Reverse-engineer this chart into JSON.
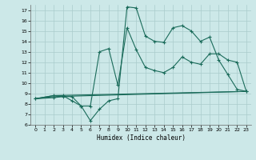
{
  "xlabel": "Humidex (Indice chaleur)",
  "background_color": "#cce8e8",
  "grid_color": "#aacccc",
  "line_color": "#1a6b5a",
  "xlim": [
    -0.5,
    23.5
  ],
  "ylim": [
    6,
    17.5
  ],
  "yticks": [
    6,
    7,
    8,
    9,
    10,
    11,
    12,
    13,
    14,
    15,
    16,
    17
  ],
  "xticks": [
    0,
    1,
    2,
    3,
    4,
    5,
    6,
    7,
    8,
    9,
    10,
    11,
    12,
    13,
    14,
    15,
    16,
    17,
    18,
    19,
    20,
    21,
    22,
    23
  ],
  "line1_x": [
    0,
    2,
    3,
    4,
    5,
    6,
    7,
    8,
    9,
    10,
    11,
    12,
    13,
    14,
    15,
    16,
    17,
    18,
    19,
    20,
    21,
    22,
    23
  ],
  "line1_y": [
    8.5,
    8.6,
    8.7,
    8.7,
    7.8,
    6.4,
    7.5,
    8.3,
    8.5,
    17.3,
    17.2,
    14.5,
    14.0,
    13.9,
    15.3,
    15.5,
    15.0,
    14.0,
    14.4,
    12.2,
    10.8,
    9.4,
    9.2
  ],
  "line2_x": [
    0,
    2,
    3,
    4,
    5,
    6,
    7,
    8,
    9,
    10,
    11,
    12,
    13,
    14,
    15,
    16,
    17,
    18,
    19,
    20,
    21,
    22,
    23
  ],
  "line2_y": [
    8.5,
    8.8,
    8.8,
    8.3,
    7.8,
    7.8,
    13.0,
    13.3,
    9.8,
    15.3,
    13.2,
    11.5,
    11.2,
    11.0,
    11.5,
    12.5,
    12.0,
    11.8,
    12.8,
    12.8,
    12.2,
    12.0,
    9.2
  ],
  "line3_x": [
    0,
    2,
    23
  ],
  "line3_y": [
    8.5,
    8.7,
    9.2
  ],
  "line4_x": [
    0,
    2,
    23
  ],
  "line4_y": [
    8.5,
    8.8,
    9.2
  ]
}
